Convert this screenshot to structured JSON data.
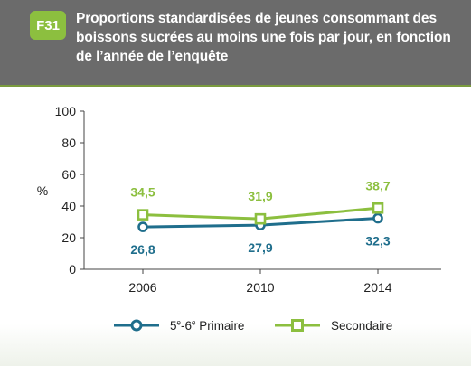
{
  "figure": {
    "badge": "F31",
    "title": "Proportions standardisées de jeunes consommant des boissons sucrées au moins une fois par jour, en fonction de l’année de l’enquête"
  },
  "colors": {
    "header_bg": "#6b6b6b",
    "badge_bg": "#8cbf3f",
    "primaire": "#1f6e8c",
    "secondaire": "#8cbf3f",
    "axis": "#444444"
  },
  "legend": {
    "primaire": {
      "base": "5",
      "sup1": "e",
      "mid": "-6",
      "sup2": "e",
      "rest": " Primaire"
    },
    "secondaire": "Secondaire"
  },
  "chart_data": {
    "type": "line",
    "ylabel": "%",
    "ylim": [
      0,
      100
    ],
    "yticks": [
      0,
      20,
      40,
      60,
      80,
      100
    ],
    "categories": [
      "2006",
      "2010",
      "2014"
    ],
    "series": [
      {
        "name": "5e-6e Primaire",
        "values": [
          26.8,
          27.9,
          32.3
        ],
        "labels": [
          "26,8",
          "27,9",
          "32,3"
        ],
        "color": "#1f6e8c",
        "marker": "circle",
        "label_position": "below"
      },
      {
        "name": "Secondaire",
        "values": [
          34.5,
          31.9,
          38.7
        ],
        "labels": [
          "34,5",
          "31,9",
          "38,7"
        ],
        "color": "#8cbf3f",
        "marker": "square",
        "label_position": "above"
      }
    ]
  }
}
